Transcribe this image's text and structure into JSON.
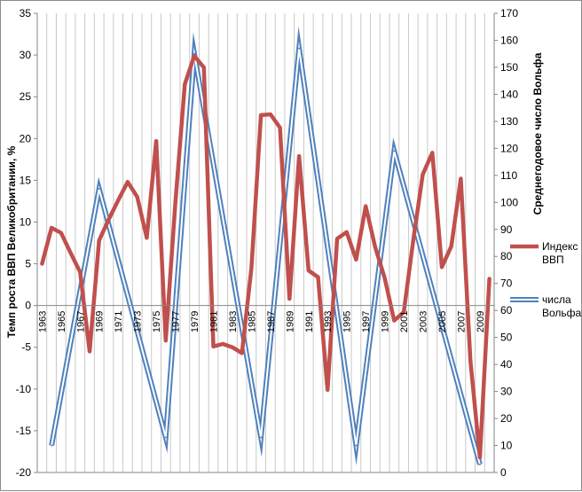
{
  "chart_data": {
    "type": "line",
    "ylabel": "Темп роста ВВП Великобритании, %",
    "y2label": "Среднегодовое число Вольфа",
    "ylim": [
      -20,
      35
    ],
    "y2lim": [
      0,
      170
    ],
    "xlim": [
      1963,
      2010
    ],
    "grid": true,
    "legend_position": "right",
    "x_tick_labels": [
      "1963",
      "1965",
      "1967",
      "1969",
      "1971",
      "1973",
      "1975",
      "1977",
      "1979",
      "1981",
      "1983",
      "1985",
      "1987",
      "1989",
      "1991",
      "1993",
      "1995",
      "1997",
      "1999",
      "2001",
      "2003",
      "2005",
      "2007",
      "2009"
    ],
    "series": [
      {
        "name": "Индекс ВВП",
        "axis": "left",
        "color": "#c0504d",
        "x": [
          1963,
          1964,
          1965,
          1966,
          1967,
          1968,
          1969,
          1970,
          1971,
          1972,
          1973,
          1974,
          1975,
          1976,
          1977,
          1978,
          1979,
          1980,
          1981,
          1982,
          1983,
          1984,
          1985,
          1986,
          1987,
          1988,
          1989,
          1990,
          1991,
          1992,
          1993,
          1994,
          1995,
          1996,
          1997,
          1998,
          1999,
          2000,
          2001,
          2002,
          2003,
          2004,
          2005,
          2006,
          2007,
          2008,
          2009,
          2010
        ],
        "y": [
          5.0,
          9.3,
          8.7,
          6.3,
          4.0,
          -5.5,
          7.8,
          10.3,
          12.6,
          14.8,
          13.0,
          8.1,
          19.7,
          -4.2,
          12.2,
          26.5,
          29.9,
          28.5,
          -4.9,
          -4.6,
          -5.0,
          -5.7,
          4.5,
          22.8,
          22.9,
          21.3,
          0.8,
          17.9,
          4.2,
          3.4,
          -10.1,
          8.0,
          8.8,
          5.5,
          11.9,
          7.0,
          3.3,
          -1.8,
          -0.8,
          7.8,
          15.7,
          18.3,
          4.6,
          7.1,
          15.2,
          -6.6,
          -18.2,
          3.2
        ]
      },
      {
        "name": "числа Вольфа",
        "axis": "right",
        "color": "#4f81bd",
        "x": [
          1964,
          1969,
          1976,
          1979,
          1986,
          1990,
          1996,
          2000,
          2009
        ],
        "y": [
          10,
          105,
          13,
          155,
          13,
          157,
          10,
          119,
          3
        ]
      }
    ]
  }
}
